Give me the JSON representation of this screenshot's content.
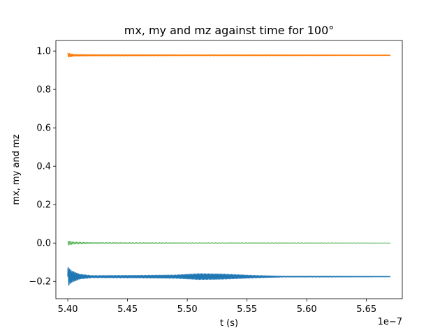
{
  "chart_data": {
    "type": "line",
    "title": "mx, my and mz against time for 100°",
    "xlabel": "t (s)",
    "ylabel": "mx, my and mz",
    "x_offset_label": "1e−7",
    "xlim": [
      5.39e-07,
      5.68e-07
    ],
    "ylim": [
      -0.29,
      1.055
    ],
    "x_ticks": [
      5.4e-07,
      5.45e-07,
      5.5e-07,
      5.55e-07,
      5.6e-07,
      5.65e-07
    ],
    "x_tick_labels": [
      "5.40",
      "5.45",
      "5.50",
      "5.55",
      "5.60",
      "5.65"
    ],
    "y_ticks": [
      -0.2,
      0.0,
      0.2,
      0.4,
      0.6,
      0.8,
      1.0
    ],
    "y_tick_labels": [
      "−0.2",
      "0.0",
      "0.2",
      "0.4",
      "0.6",
      "0.8",
      "1.0"
    ],
    "grid": false,
    "legend": false,
    "x_range": [
      5.4e-07,
      5.67e-07
    ],
    "series": [
      {
        "color": "#1f77b4",
        "baseline": -0.175,
        "stroke_width": 1.5,
        "oscillation": [
          [
            5.4e-07,
            0.05
          ],
          [
            5.403e-07,
            0.03
          ],
          [
            5.41e-07,
            0.012
          ],
          [
            5.42e-07,
            0.005
          ],
          [
            5.46e-07,
            0.006
          ],
          [
            5.49e-07,
            0.008
          ],
          [
            5.51e-07,
            0.015
          ],
          [
            5.53e-07,
            0.013
          ],
          [
            5.555e-07,
            0.006
          ],
          [
            5.58e-07,
            0.002
          ],
          [
            5.61e-07,
            0.002
          ],
          [
            5.67e-07,
            0.001
          ]
        ]
      },
      {
        "color": "#ff7f0e",
        "baseline": 0.978,
        "stroke_width": 1.5,
        "oscillation": [
          [
            5.4e-07,
            0.01
          ],
          [
            5.405e-07,
            0.004
          ],
          [
            5.42e-07,
            0.003
          ],
          [
            5.5e-07,
            0.002
          ],
          [
            5.56e-07,
            0.002
          ],
          [
            5.67e-07,
            0.001
          ]
        ]
      },
      {
        "color": "#2ca02c",
        "baseline": 0.0,
        "stroke_width": 0.7,
        "oscillation": [
          [
            5.4e-07,
            0.012
          ],
          [
            5.405e-07,
            0.006
          ],
          [
            5.42e-07,
            0.003
          ],
          [
            5.5e-07,
            0.002
          ],
          [
            5.56e-07,
            0.002
          ],
          [
            5.67e-07,
            0.001
          ]
        ]
      }
    ]
  }
}
